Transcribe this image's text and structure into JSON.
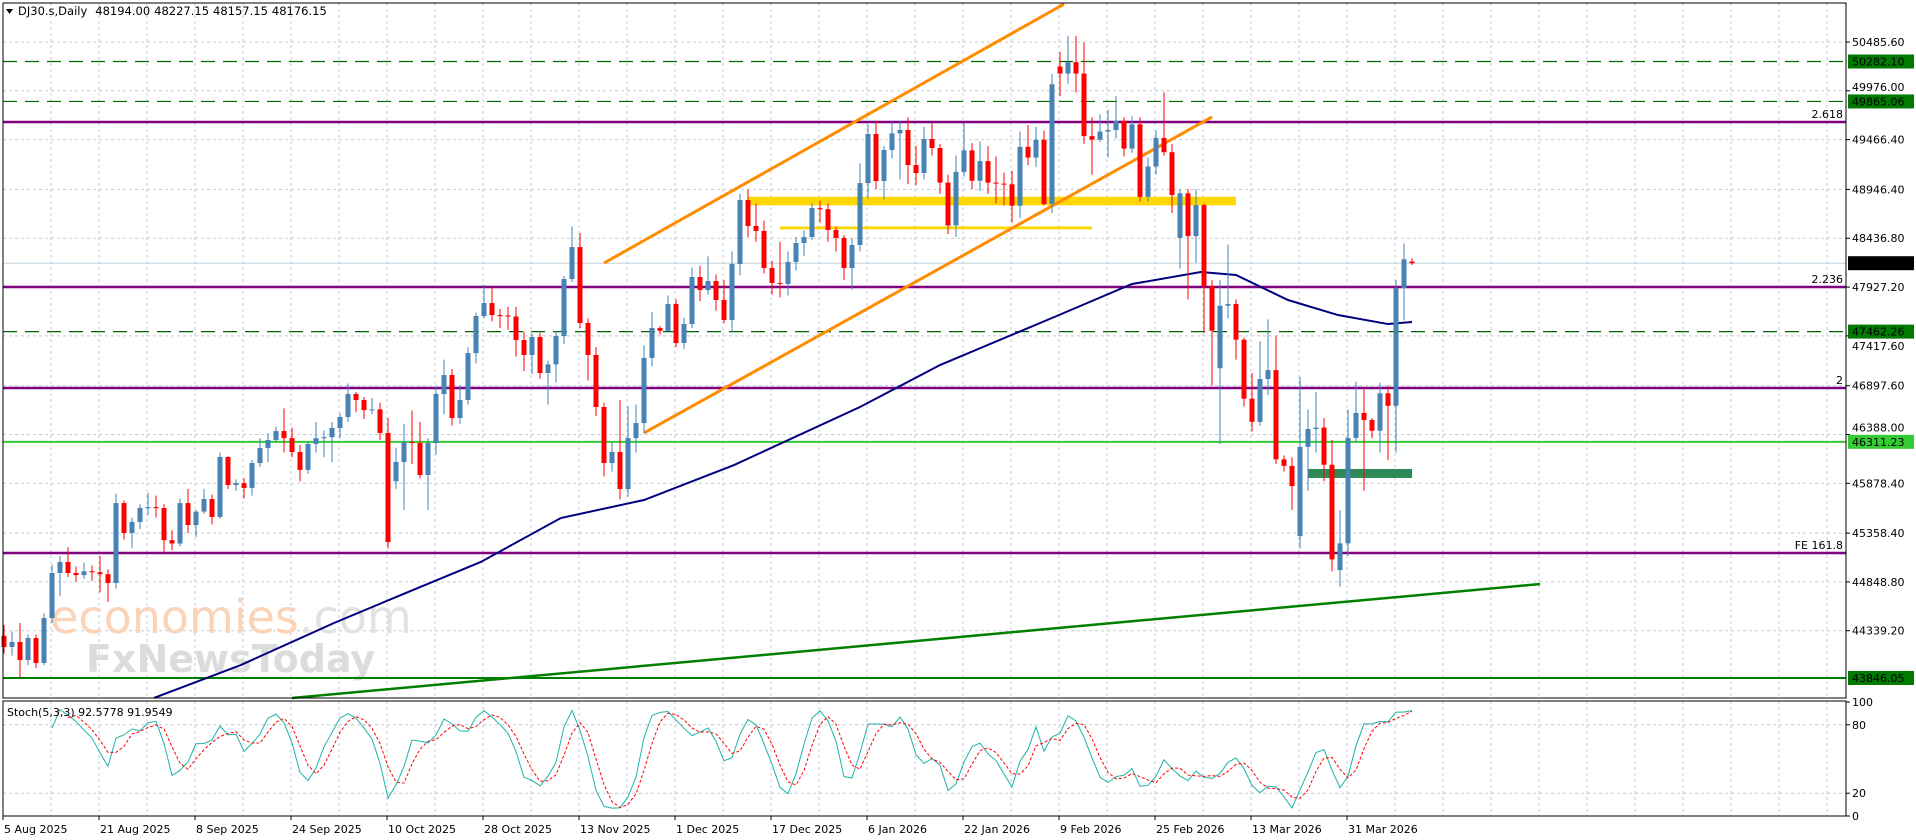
{
  "header": {
    "symbol_timeframe": "DJ30.s,Daily",
    "open": "48194.00",
    "high": "48227.15",
    "low": "48157.15",
    "close": "48176.15"
  },
  "colors": {
    "bull": "#4682b4",
    "bear": "#ff0000",
    "ma": "#000080",
    "channel": "#ff8c00",
    "zone": "#ffd700",
    "fib": "#800080",
    "support_green": "#33cc33",
    "dark_green": "#007a00",
    "demand_box": "#2e8b57",
    "stoch_main": "#20b2aa",
    "stoch_signal": "#ff0000",
    "grid": "#c4ccd4"
  },
  "watermark": {
    "part1": "economies",
    "part2": ".com",
    "part3": "FxNewsToday"
  },
  "chart_data": {
    "type": "candlestick",
    "price_ticks": [
      "50485.60",
      "49976.00",
      "49466.40",
      "48946.40",
      "48436.80",
      "47927.20",
      "47417.60",
      "46897.60",
      "46388.00",
      "45878.40",
      "45358.40",
      "44848.80",
      "44339.20"
    ],
    "x_ticks": [
      {
        "label": "5 Aug 2025",
        "bar": 0
      },
      {
        "label": "21 Aug 2025",
        "bar": 12
      },
      {
        "label": "8 Sep 2025",
        "bar": 24
      },
      {
        "label": "24 Sep 2025",
        "bar": 36
      },
      {
        "label": "10 Oct 2025",
        "bar": 48
      },
      {
        "label": "28 Oct 2025",
        "bar": 60
      },
      {
        "label": "13 Nov 2025",
        "bar": 72
      },
      {
        "label": "1 Dec 2025",
        "bar": 84
      },
      {
        "label": "17 Dec 2025",
        "bar": 96
      },
      {
        "label": "6 Jan 2026",
        "bar": 108
      },
      {
        "label": "22 Jan 2026",
        "bar": 120
      },
      {
        "label": "9 Feb 2026",
        "bar": 132
      },
      {
        "label": "25 Feb 2026",
        "bar": 144
      },
      {
        "label": "13 Mar 2026",
        "bar": 156
      },
      {
        "label": "31 Mar 2026",
        "bar": 168
      }
    ],
    "current_price": {
      "value": 48176.15,
      "label": "48176.15"
    },
    "levels": [
      {
        "price": 50282.1,
        "label": "50282.10",
        "style": "dashed",
        "color": "#006400",
        "box": "#007a00"
      },
      {
        "price": 49865.06,
        "label": "49865.06",
        "style": "dashed",
        "color": "#006400",
        "box": "#007a00"
      },
      {
        "price": 47462.26,
        "label": "47462.26",
        "style": "dashed",
        "color": "#006400",
        "box": "#007a00"
      },
      {
        "price": 46311.23,
        "label": "46311.23",
        "style": "solid",
        "color": "#33cc33",
        "box": "#33cc33"
      },
      {
        "price": 43846.05,
        "label": "43846.05",
        "style": "solid",
        "color": "#008000",
        "box": "#007a00"
      }
    ],
    "fib_levels": [
      {
        "price": 49650,
        "label": "2.618"
      },
      {
        "price": 47928,
        "label": "2.236"
      },
      {
        "price": 46873,
        "label": "2"
      },
      {
        "price": 45151,
        "label": "FE 161.8"
      }
    ],
    "channel_lines": [
      {
        "bar1": 75,
        "price1": 48178,
        "bar2": 132.5,
        "price2": 50882
      },
      {
        "bar1": 80,
        "price1": 46404,
        "bar2": 151,
        "price2": 49703
      }
    ],
    "trendline": {
      "bar1": 36,
      "price1": 43637,
      "bar2": 192,
      "price2": 44827
    },
    "zones": [
      {
        "bar1": 93,
        "bar2": 154,
        "top": 48870,
        "bottom": 48780,
        "kind": "yellow-band"
      },
      {
        "bar1": 97,
        "bar2": 136,
        "top": 48560,
        "bottom": 48530,
        "kind": "yellow-line"
      },
      {
        "bar1": 163,
        "bar2": 176,
        "top": 46028,
        "bottom": 45934,
        "kind": "green-box"
      }
    ],
    "moving_average": [
      [
        18.75,
        43637
      ],
      [
        29.6,
        43981
      ],
      [
        41.25,
        44420
      ],
      [
        49.6,
        44712
      ],
      [
        59.6,
        45057
      ],
      [
        69.6,
        45516
      ],
      [
        80,
        45704
      ],
      [
        91.25,
        46069
      ],
      [
        107,
        46675
      ],
      [
        117,
        47113
      ],
      [
        131,
        47604
      ],
      [
        141,
        47959
      ],
      [
        149.6,
        48084
      ],
      [
        154,
        48053
      ],
      [
        160.5,
        47792
      ],
      [
        166.75,
        47635
      ],
      [
        173,
        47541
      ],
      [
        176,
        47562
      ]
    ],
    "ohlc": [
      [
        44286,
        44400,
        44100,
        44170
      ],
      [
        44170,
        44330,
        44080,
        44222
      ],
      [
        44222,
        44420,
        43850,
        44034
      ],
      [
        44034,
        44300,
        43980,
        44263
      ],
      [
        44263,
        44300,
        43950,
        44003
      ],
      [
        44003,
        44520,
        43980,
        44472
      ],
      [
        44472,
        45030,
        44420,
        44942
      ],
      [
        44942,
        45120,
        44700,
        45057
      ],
      [
        45057,
        45210,
        44900,
        44942
      ],
      [
        44942,
        45010,
        44850,
        44920
      ],
      [
        44920,
        45050,
        44880,
        44960
      ],
      [
        44960,
        45020,
        44860,
        44950
      ],
      [
        44950,
        45120,
        44740,
        44930
      ],
      [
        44930,
        44980,
        44640,
        44838
      ],
      [
        44838,
        45770,
        44780,
        45672
      ],
      [
        45672,
        45700,
        45290,
        45360
      ],
      [
        45360,
        45520,
        45200,
        45475
      ],
      [
        45475,
        45660,
        45400,
        45621
      ],
      [
        45621,
        45780,
        45550,
        45630
      ],
      [
        45630,
        45750,
        45520,
        45620
      ],
      [
        45620,
        45660,
        45150,
        45285
      ],
      [
        45285,
        45390,
        45180,
        45250
      ],
      [
        45250,
        45720,
        45220,
        45672
      ],
      [
        45672,
        45820,
        45360,
        45443
      ],
      [
        45443,
        45600,
        45320,
        45583
      ],
      [
        45583,
        45820,
        45560,
        45714
      ],
      [
        45714,
        45760,
        45450,
        45527
      ],
      [
        45527,
        46200,
        45510,
        46153
      ],
      [
        46153,
        46160,
        45820,
        45861
      ],
      [
        45861,
        45920,
        45800,
        45880
      ],
      [
        45880,
        45930,
        45720,
        45830
      ],
      [
        45830,
        46120,
        45750,
        46090
      ],
      [
        46090,
        46350,
        46050,
        46247
      ],
      [
        46247,
        46400,
        46100,
        46330
      ],
      [
        46330,
        46470,
        46300,
        46424
      ],
      [
        46424,
        46660,
        46200,
        46350
      ],
      [
        46350,
        46460,
        46150,
        46205
      ],
      [
        46205,
        46280,
        45900,
        46018
      ],
      [
        46018,
        46320,
        45980,
        46289
      ],
      [
        46289,
        46520,
        46200,
        46350
      ],
      [
        46350,
        46430,
        46150,
        46360
      ],
      [
        46360,
        46520,
        46100,
        46456
      ],
      [
        46456,
        46610,
        46350,
        46571
      ],
      [
        46571,
        46920,
        46520,
        46811
      ],
      [
        46811,
        46830,
        46620,
        46748
      ],
      [
        46748,
        46780,
        46550,
        46643
      ],
      [
        46643,
        46770,
        46600,
        46650
      ],
      [
        46650,
        46720,
        46330,
        46404
      ],
      [
        46404,
        46560,
        45200,
        45265
      ],
      [
        45900,
        46250,
        45820,
        46101
      ],
      [
        46101,
        46500,
        45600,
        46310
      ],
      [
        46310,
        46640,
        46080,
        46300
      ],
      [
        46300,
        46520,
        45930,
        45965
      ],
      [
        45965,
        46350,
        45600,
        46300
      ],
      [
        46300,
        46890,
        46180,
        46811
      ],
      [
        46811,
        47170,
        46600,
        47009
      ],
      [
        47009,
        47070,
        46480,
        46560
      ],
      [
        46560,
        46900,
        46500,
        46748
      ],
      [
        46748,
        47300,
        46700,
        47238
      ],
      [
        47238,
        47660,
        47130,
        47625
      ],
      [
        47625,
        47950,
        47600,
        47760
      ],
      [
        47760,
        47930,
        47570,
        47635
      ],
      [
        47635,
        47700,
        47500,
        47630
      ],
      [
        47630,
        47720,
        47480,
        47620
      ],
      [
        47620,
        47720,
        47200,
        47374
      ],
      [
        47374,
        47460,
        47050,
        47218
      ],
      [
        47218,
        47440,
        47020,
        47406
      ],
      [
        47406,
        47450,
        46970,
        47030
      ],
      [
        47030,
        47160,
        46700,
        47120
      ],
      [
        47120,
        47470,
        46930,
        47416
      ],
      [
        47416,
        48040,
        47330,
        48011
      ],
      [
        48011,
        48560,
        47980,
        48345
      ],
      [
        48345,
        48490,
        47500,
        47552
      ],
      [
        47552,
        47600,
        46950,
        47218
      ],
      [
        47218,
        47300,
        46580,
        46675
      ],
      [
        46675,
        46720,
        45950,
        46090
      ],
      [
        46090,
        46310,
        46000,
        46205
      ],
      [
        46205,
        46750,
        45710,
        45819
      ],
      [
        45819,
        46680,
        45740,
        46351
      ],
      [
        46351,
        46700,
        46200,
        46508
      ],
      [
        46508,
        47320,
        46400,
        47187
      ],
      [
        47187,
        47670,
        47100,
        47500
      ],
      [
        47500,
        47520,
        47430,
        47470
      ],
      [
        47470,
        47840,
        47450,
        47750
      ],
      [
        47750,
        47800,
        47300,
        47343
      ],
      [
        47343,
        47610,
        47280,
        47541
      ],
      [
        47541,
        48130,
        47500,
        48032
      ],
      [
        48032,
        48150,
        47780,
        47896
      ],
      [
        47896,
        48250,
        47850,
        47990
      ],
      [
        47990,
        48060,
        47680,
        47792
      ],
      [
        47792,
        48000,
        47550,
        47583
      ],
      [
        47583,
        48300,
        47450,
        48168
      ],
      [
        48168,
        48900,
        48050,
        48836
      ],
      [
        48836,
        48950,
        48450,
        48565
      ],
      [
        48565,
        48800,
        48400,
        48513
      ],
      [
        48513,
        48620,
        48070,
        48126
      ],
      [
        48126,
        48200,
        47850,
        47970
      ],
      [
        47970,
        48400,
        47820,
        47960
      ],
      [
        47960,
        48300,
        47840,
        48189
      ],
      [
        48189,
        48450,
        48100,
        48387
      ],
      [
        48387,
        48520,
        48250,
        48450
      ],
      [
        48450,
        48800,
        48420,
        48752
      ],
      [
        48752,
        48830,
        48600,
        48740
      ],
      [
        48740,
        48800,
        48400,
        48523
      ],
      [
        48523,
        48560,
        48300,
        48440
      ],
      [
        48440,
        48470,
        48000,
        48126
      ],
      [
        48126,
        48440,
        47900,
        48366
      ],
      [
        48366,
        49220,
        48300,
        49013
      ],
      [
        49013,
        49620,
        48850,
        49525
      ],
      [
        49525,
        49660,
        48950,
        49034
      ],
      [
        49034,
        49400,
        48840,
        49358
      ],
      [
        49358,
        49650,
        49270,
        49532
      ],
      [
        49532,
        49660,
        49050,
        49567
      ],
      [
        49567,
        49700,
        49000,
        49201
      ],
      [
        49201,
        49400,
        48990,
        49118
      ],
      [
        49118,
        49600,
        49050,
        49473
      ],
      [
        49473,
        49640,
        49300,
        49379
      ],
      [
        49379,
        49420,
        48900,
        49018
      ],
      [
        49018,
        49100,
        48480,
        48571
      ],
      [
        48571,
        49300,
        48450,
        49130
      ],
      [
        49130,
        49640,
        49080,
        49354
      ],
      [
        49354,
        49430,
        48950,
        49037
      ],
      [
        49037,
        49450,
        48930,
        49242
      ],
      [
        49242,
        49400,
        48900,
        49018
      ],
      [
        49018,
        49290,
        48800,
        49007
      ],
      [
        49007,
        49120,
        48780,
        49000
      ],
      [
        49000,
        49140,
        48600,
        48776
      ],
      [
        48776,
        49550,
        48650,
        49391
      ],
      [
        49391,
        49620,
        49200,
        49279
      ],
      [
        49279,
        49600,
        49180,
        49466
      ],
      [
        49466,
        49560,
        48780,
        48795
      ],
      [
        48795,
        50150,
        48700,
        50044
      ],
      [
        50230,
        50380,
        49920,
        50156
      ],
      [
        50156,
        50550,
        50050,
        50275
      ],
      [
        50275,
        50550,
        49960,
        50156
      ],
      [
        50156,
        50480,
        49420,
        49503
      ],
      [
        49503,
        49700,
        49100,
        49466
      ],
      [
        49466,
        49730,
        49440,
        49551
      ],
      [
        49551,
        49780,
        49280,
        49567
      ],
      [
        49567,
        49920,
        49480,
        49663
      ],
      [
        49663,
        49700,
        49290,
        49373
      ],
      [
        49373,
        49710,
        49330,
        49626
      ],
      [
        49626,
        49700,
        48820,
        48869
      ],
      [
        48869,
        49280,
        48820,
        49186
      ],
      [
        49186,
        49560,
        49100,
        49484
      ],
      [
        49484,
        49960,
        49300,
        49335
      ],
      [
        49335,
        49420,
        48700,
        48888
      ],
      [
        48440,
        48950,
        48120,
        48906
      ],
      [
        48906,
        48950,
        47800,
        48459
      ],
      [
        48459,
        48950,
        48180,
        48783
      ],
      [
        48783,
        48800,
        47450,
        47937
      ],
      [
        47937,
        48000,
        46900,
        47471
      ],
      [
        47080,
        48000,
        46290,
        47732
      ],
      [
        47732,
        48370,
        47600,
        47750
      ],
      [
        47750,
        47800,
        47170,
        47378
      ],
      [
        47378,
        47400,
        46680,
        46762
      ],
      [
        46762,
        47030,
        46420,
        46520
      ],
      [
        46520,
        47360,
        46480,
        46967
      ],
      [
        46967,
        47590,
        46800,
        47060
      ],
      [
        47060,
        47420,
        46080,
        46128
      ],
      [
        46128,
        46170,
        46000,
        46060
      ],
      [
        46060,
        46150,
        45600,
        45849
      ],
      [
        45327,
        46990,
        45200,
        46259
      ],
      [
        46259,
        46650,
        45800,
        46445
      ],
      [
        46445,
        46830,
        46200,
        46460
      ],
      [
        46460,
        46560,
        45900,
        46072
      ],
      [
        46072,
        46330,
        44960,
        45084
      ],
      [
        44972,
        45600,
        44800,
        45252
      ],
      [
        45252,
        46650,
        45120,
        46352
      ],
      [
        46352,
        46940,
        46300,
        46613
      ],
      [
        46613,
        46860,
        45800,
        46539
      ],
      [
        46539,
        46560,
        46350,
        46427
      ],
      [
        46427,
        46930,
        46200,
        46818
      ],
      [
        46818,
        46900,
        46120,
        46688
      ],
      [
        46688,
        48000,
        46200,
        47918
      ],
      [
        47918,
        48380,
        47580,
        48217
      ],
      [
        48194,
        48227,
        48157,
        48176
      ]
    ],
    "stochastic": {
      "label": "Stoch(5,3,3) 92.5778 91.9549",
      "params": [
        5,
        3,
        3
      ],
      "main_last": 92.5778,
      "signal_last": 91.9549,
      "levels": [
        {
          "value": 100,
          "label": "100"
        },
        {
          "value": 80,
          "label": "80"
        },
        {
          "value": 20,
          "label": "20"
        },
        {
          "value": 0,
          "label": "0"
        }
      ],
      "ylim": [
        0,
        100
      ]
    }
  }
}
